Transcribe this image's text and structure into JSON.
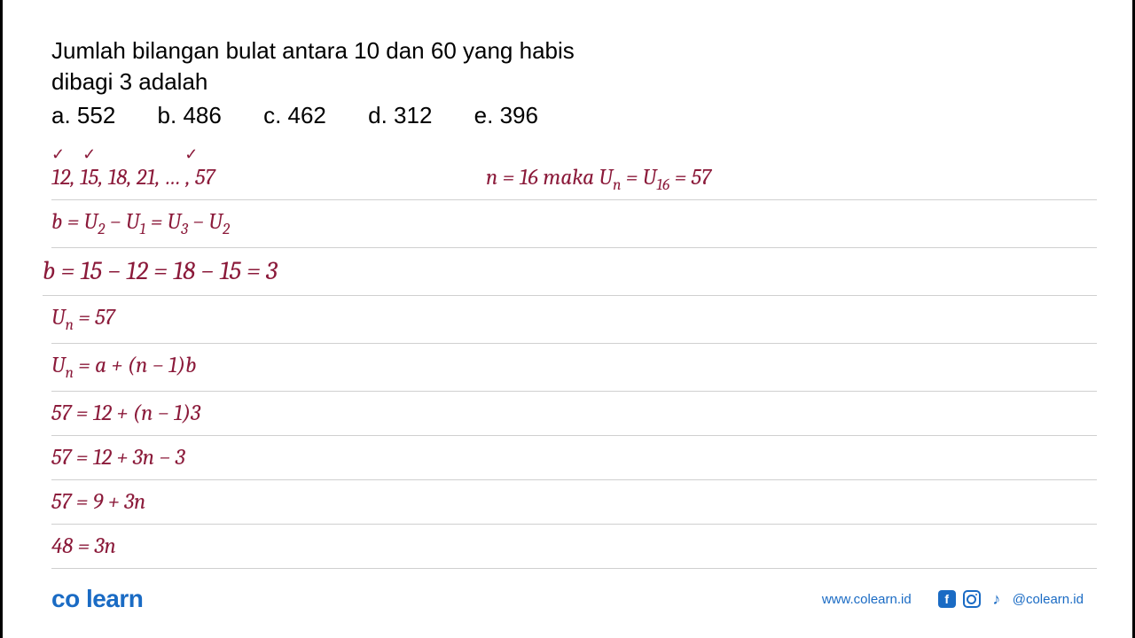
{
  "question": {
    "line1": "Jumlah bilangan bulat antara 10 dan 60 yang habis",
    "line2": "dibagi 3 adalah",
    "options": {
      "a": "a. 552",
      "b": "b. 486",
      "c": "c. 462",
      "d": "d. 312",
      "e": "e. 396"
    }
  },
  "work": {
    "line1_left": "12, 15, 18, 21, … , 57",
    "line1_right_prefix": "n = 16 maka U",
    "line1_right_sub1": "n",
    "line1_right_mid": " = U",
    "line1_right_sub2": "16",
    "line1_right_suffix": " = 57",
    "line2_a": "b = U",
    "line2_s1": "2",
    "line2_b": " − U",
    "line2_s2": "1",
    "line2_c": " = U",
    "line2_s3": "3",
    "line2_d": " − U",
    "line2_s4": "2",
    "line3": "b = 15 − 12 = 18 − 15 = 3",
    "line4_a": "U",
    "line4_s": "n",
    "line4_b": " = 57",
    "line5_a": "U",
    "line5_s": "n",
    "line5_b": " = a + (n − 1)b",
    "line6": "57 = 12 + (n − 1)3",
    "line7": "57 = 12 + 3n − 3",
    "line8": "57 = 9 + 3n",
    "line9": "48 = 3n"
  },
  "footer": {
    "logo": "co learn",
    "website": "www.colearn.id",
    "handle": "@colearn.id"
  },
  "colors": {
    "work_text": "#8b1a3a",
    "brand": "#1a6bc4",
    "line": "#d0d0d0",
    "text": "#000000",
    "background": "#ffffff"
  },
  "typography": {
    "question_fontsize": 26,
    "work_fontsize": 25,
    "work_big_fontsize": 29,
    "logo_fontsize": 28,
    "footer_fontsize": 15,
    "work_font": "Cambria, Times New Roman, serif",
    "body_font": "Arial, Helvetica, sans-serif"
  }
}
